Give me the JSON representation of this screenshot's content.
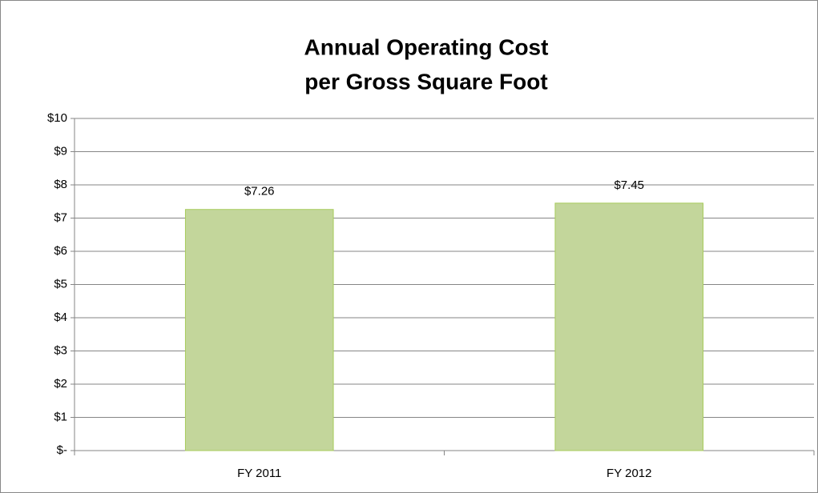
{
  "chart_data": {
    "type": "bar",
    "title": [
      "Annual Operating Cost",
      "per Gross Square Foot"
    ],
    "categories": [
      "FY 2011",
      "FY 2012"
    ],
    "values": [
      7.26,
      7.45
    ],
    "value_labels": [
      "$7.26",
      "$7.45"
    ],
    "color": "#c3d69b",
    "ylim": [
      0,
      10
    ],
    "yticks": [
      {
        "value": 0,
        "label": "$-"
      },
      {
        "value": 1,
        "label": "$1"
      },
      {
        "value": 2,
        "label": "$2"
      },
      {
        "value": 3,
        "label": "$3"
      },
      {
        "value": 4,
        "label": "$4"
      },
      {
        "value": 5,
        "label": "$5"
      },
      {
        "value": 6,
        "label": "$6"
      },
      {
        "value": 7,
        "label": "$7"
      },
      {
        "value": 8,
        "label": "$8"
      },
      {
        "value": 9,
        "label": "$9"
      },
      {
        "value": 10,
        "label": "$10"
      }
    ],
    "grid": true
  }
}
